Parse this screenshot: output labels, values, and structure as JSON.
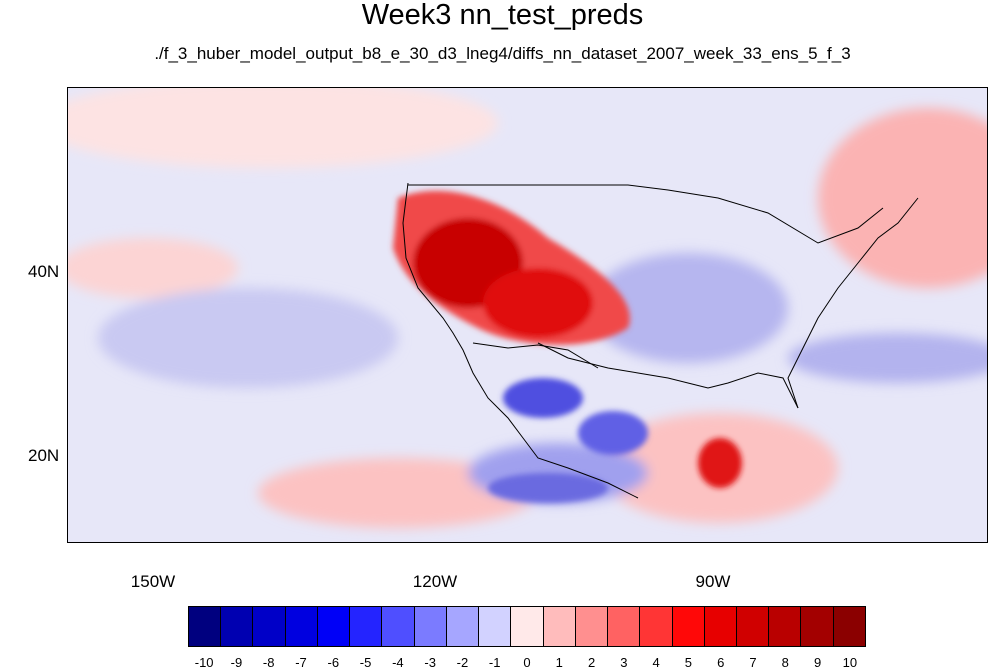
{
  "title": "Week3 nn_test_preds",
  "subtitle": "./f_3_huber_model_output_b8_e_30_d3_lneg4/diffs_nn_dataset_2007_week_33_ens_5_f_3",
  "map": {
    "lat_labels": [
      "40N",
      "20N"
    ],
    "lon_labels": [
      "150W",
      "120W",
      "90W"
    ],
    "background_color": "#e7e7f8"
  },
  "colorbar": {
    "colors": [
      "#00007f",
      "#0000b1",
      "#0000c8",
      "#0000e0",
      "#0000f7",
      "#2424ff",
      "#4f4fff",
      "#7b7bff",
      "#a6a6ff",
      "#d2d2ff",
      "#ffe9e9",
      "#ffbcbc",
      "#ff8f8f",
      "#ff6262",
      "#ff3535",
      "#ff0808",
      "#e70000",
      "#d00000",
      "#b90000",
      "#a30000",
      "#8b0000"
    ],
    "tick_labels": [
      "-10",
      "-9",
      "-8",
      "-7",
      "-6",
      "-5",
      "-4",
      "-3",
      "-2",
      "-1",
      "0",
      "1",
      "2",
      "3",
      "4",
      "5",
      "6",
      "7",
      "8",
      "9",
      "10"
    ]
  }
}
